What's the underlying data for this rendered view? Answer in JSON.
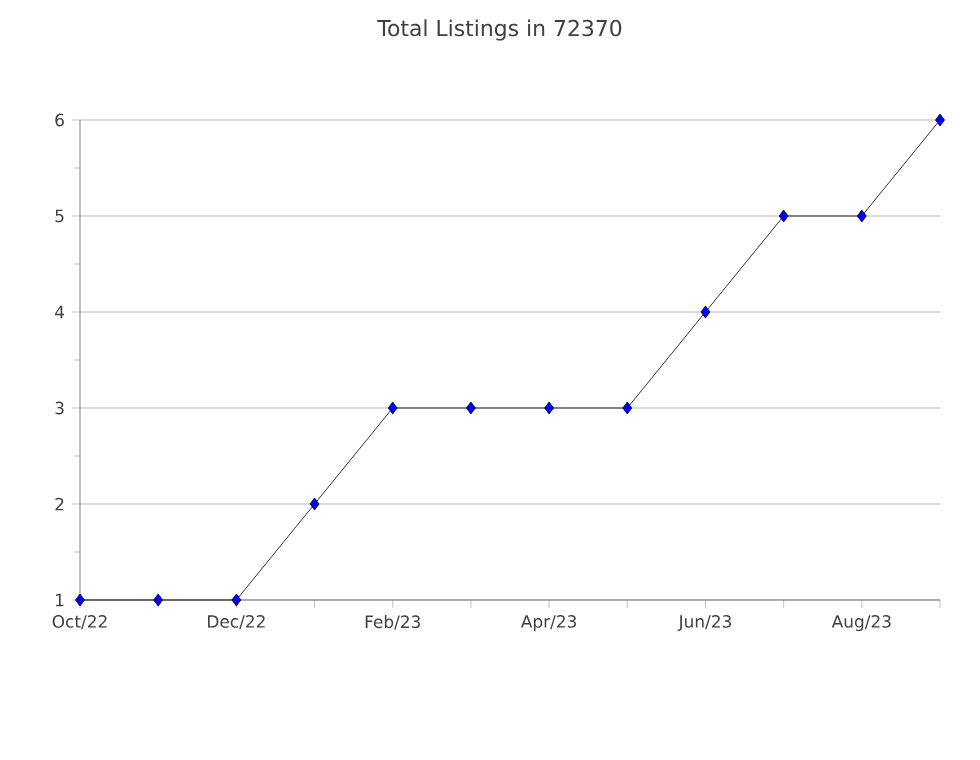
{
  "chart_data": {
    "type": "line",
    "title": "Total Listings in 72370",
    "categories": [
      "Oct/22",
      null,
      "Dec/22",
      null,
      "Feb/23",
      null,
      "Apr/23",
      null,
      "Jun/23",
      null,
      "Aug/23",
      null
    ],
    "series": [
      {
        "color": "#000000",
        "values": [
          1,
          1,
          1,
          2,
          3,
          3,
          3,
          3,
          4,
          5,
          5,
          6
        ]
      }
    ],
    "ylim": [
      1,
      6
    ],
    "yticks": [
      1,
      2,
      3,
      4,
      5,
      6
    ],
    "grid": "y",
    "marker": "diamond",
    "line_style": "solid"
  }
}
